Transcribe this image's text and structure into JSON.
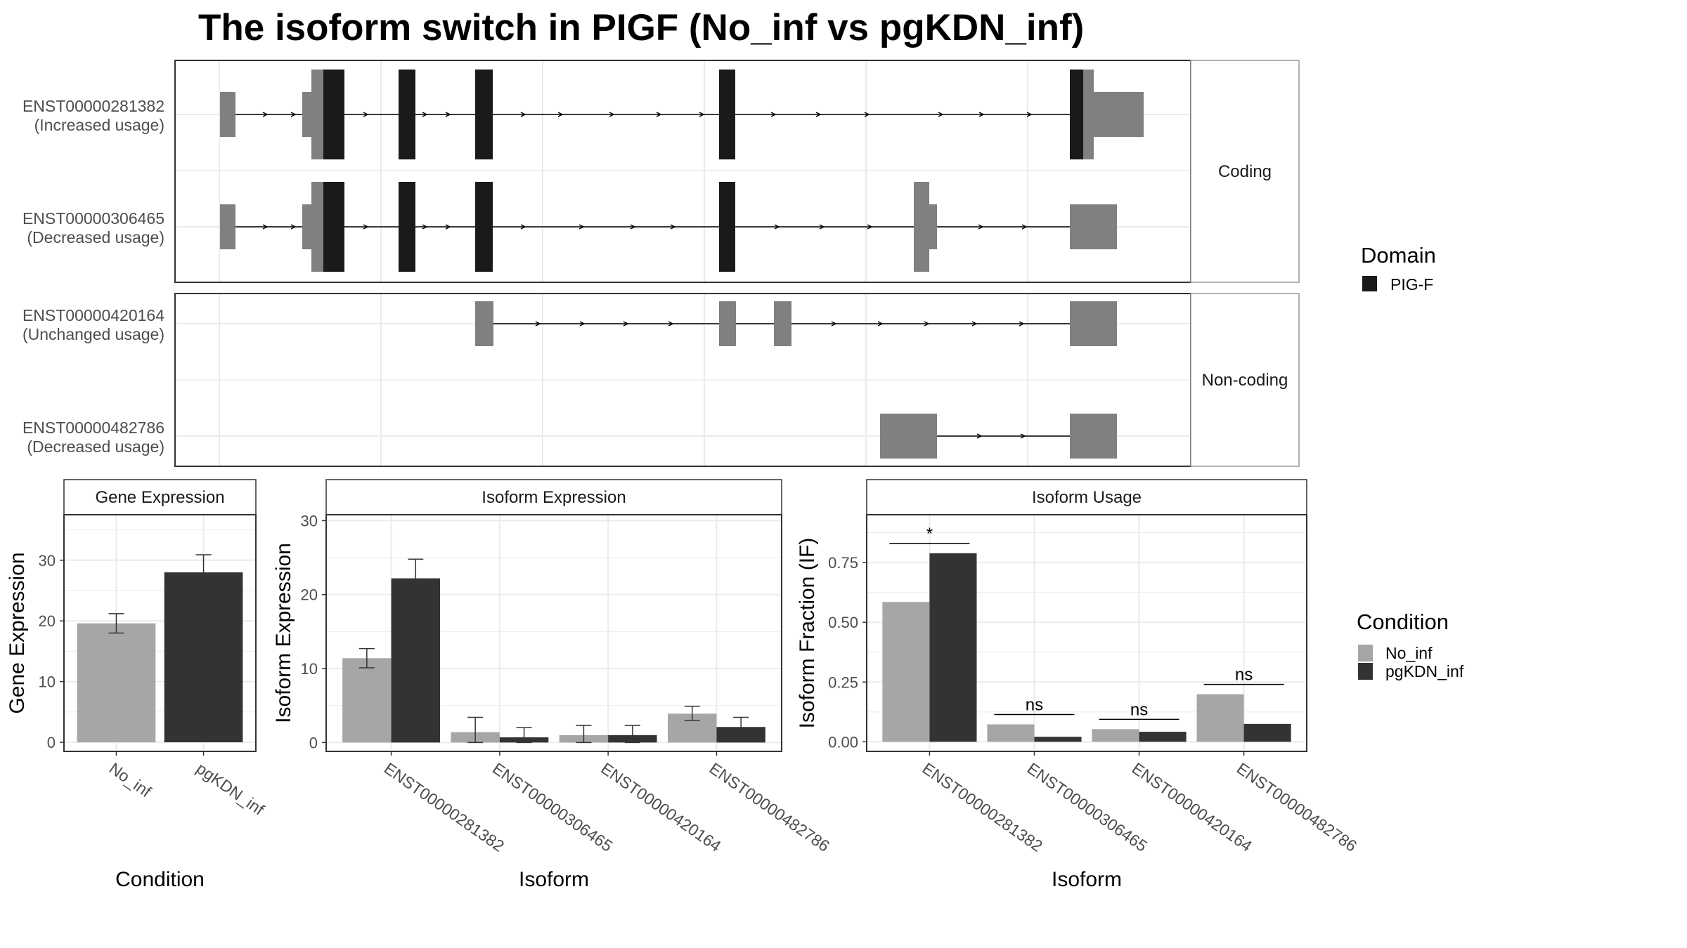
{
  "title": "The isoform switch in PIGF (No_inf vs pgKDN_inf)",
  "colors": {
    "domain": "#1a1a1a",
    "utr": "#808080",
    "no_inf": "#a6a6a6",
    "pgkdn_inf": "#333333",
    "grid": "#ebebeb",
    "strip_bg": "#ffffff"
  },
  "structure": {
    "groups": [
      {
        "label": "Coding",
        "isoforms": [
          {
            "id": "ENST00000281382",
            "usage": "(Increased usage)"
          },
          {
            "id": "ENST00000306465",
            "usage": "(Decreased usage)"
          }
        ]
      },
      {
        "label": "Non-coding",
        "isoforms": [
          {
            "id": "ENST00000420164",
            "usage": "(Unchanged usage)"
          },
          {
            "id": "ENST00000482786",
            "usage": "(Decreased usage)"
          }
        ]
      }
    ]
  },
  "legend_domain": {
    "title": "Domain",
    "items": [
      {
        "label": "PIG-F",
        "color": "#1a1a1a"
      }
    ]
  },
  "legend_condition": {
    "title": "Condition",
    "items": [
      {
        "label": "No_inf",
        "color": "#a6a6a6"
      },
      {
        "label": "pgKDN_inf",
        "color": "#333333"
      }
    ]
  },
  "chart_data": [
    {
      "type": "bar",
      "title": "Gene Expression",
      "xlabel": "Condition",
      "ylabel": "Gene Expression",
      "categories": [
        "No_inf",
        "pgKDN_inf"
      ],
      "values": [
        19.6,
        28.0
      ],
      "error": [
        [
          18.0,
          21.2
        ],
        [
          25.2,
          30.9
        ]
      ],
      "yticks": [
        0,
        10,
        20,
        30
      ],
      "ylim": [
        -1.5,
        37.5
      ]
    },
    {
      "type": "bar",
      "title": "Isoform Expression",
      "xlabel": "Isoform",
      "ylabel": "Isoform Expression",
      "categories": [
        "ENST00000281382",
        "ENST00000306465",
        "ENST00000420164",
        "ENST00000482786"
      ],
      "series": [
        {
          "name": "No_inf",
          "values": [
            11.4,
            1.4,
            1.0,
            3.9
          ],
          "error": [
            [
              10.1,
              12.7
            ],
            [
              0,
              3.4
            ],
            [
              0,
              2.3
            ],
            [
              3.0,
              4.9
            ]
          ]
        },
        {
          "name": "pgKDN_inf",
          "values": [
            22.2,
            0.7,
            1.0,
            2.1
          ],
          "error": [
            [
              19.8,
              24.8
            ],
            [
              0,
              2.0
            ],
            [
              0,
              2.3
            ],
            [
              0.8,
              3.4
            ]
          ]
        }
      ],
      "yticks": [
        0,
        10,
        20,
        30
      ],
      "ylim": [
        -1.2,
        30.8
      ]
    },
    {
      "type": "bar",
      "title": "Isoform Usage",
      "xlabel": "Isoform",
      "ylabel": "Isoform Fraction (IF)",
      "categories": [
        "ENST00000281382",
        "ENST00000306465",
        "ENST00000420164",
        "ENST00000482786"
      ],
      "series": [
        {
          "name": "No_inf",
          "values": [
            0.585,
            0.073,
            0.053,
            0.199
          ]
        },
        {
          "name": "pgKDN_inf",
          "values": [
            0.789,
            0.021,
            0.042,
            0.075
          ]
        }
      ],
      "significance": [
        "*",
        "ns",
        "ns",
        "ns"
      ],
      "yticks": [
        0.0,
        0.25,
        0.5,
        0.75
      ],
      "ytick_labels": [
        "0.00",
        "0.25",
        "0.50",
        "0.75"
      ],
      "ylim": [
        -0.04,
        0.95
      ]
    }
  ]
}
